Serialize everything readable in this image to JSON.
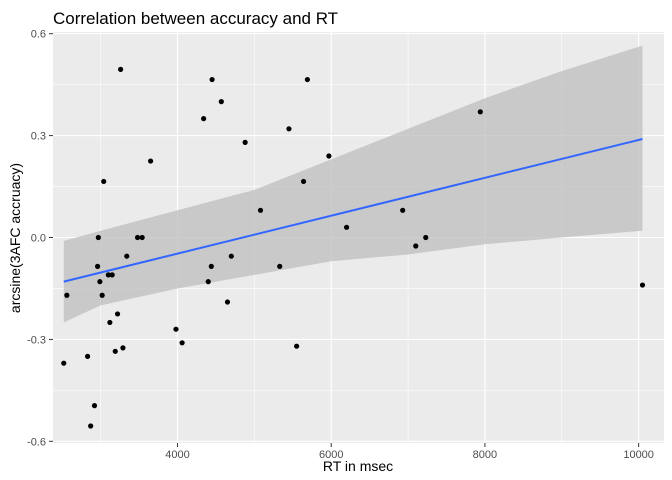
{
  "chart_data": {
    "type": "scatter",
    "title": "Correlation between accuracy and RT",
    "xlabel": "RT in msec",
    "ylabel": "arcsine(3AFC accruacy)",
    "xlim": [
      2380,
      10330
    ],
    "ylim": [
      -0.605,
      0.605
    ],
    "xticks": [
      4000,
      6000,
      8000,
      10000
    ],
    "xtick_labels": [
      "4000",
      "6000",
      "8000",
      "10000"
    ],
    "yticks": [
      -0.6,
      -0.3,
      0.0,
      0.3,
      0.6
    ],
    "ytick_labels": [
      "-0.6",
      "-0.3",
      "0.0",
      "0.3",
      "0.6"
    ],
    "grid": true,
    "colors": {
      "panel": "#ebebeb",
      "grid": "#ffffff",
      "points": "#000000",
      "fit_line": "#3366ff",
      "confidence_band": "#bdbdbd"
    },
    "points": [
      {
        "x": 2520,
        "y": -0.37
      },
      {
        "x": 2560,
        "y": -0.17
      },
      {
        "x": 2830,
        "y": -0.35
      },
      {
        "x": 2870,
        "y": -0.555
      },
      {
        "x": 2920,
        "y": -0.495
      },
      {
        "x": 2960,
        "y": -0.085
      },
      {
        "x": 2970,
        "y": 0.0
      },
      {
        "x": 2990,
        "y": -0.13
      },
      {
        "x": 3020,
        "y": -0.17
      },
      {
        "x": 3040,
        "y": 0.165
      },
      {
        "x": 3100,
        "y": -0.11
      },
      {
        "x": 3120,
        "y": -0.25
      },
      {
        "x": 3150,
        "y": -0.11
      },
      {
        "x": 3190,
        "y": -0.335
      },
      {
        "x": 3220,
        "y": -0.225
      },
      {
        "x": 3260,
        "y": 0.495
      },
      {
        "x": 3290,
        "y": -0.325
      },
      {
        "x": 3340,
        "y": -0.055
      },
      {
        "x": 3480,
        "y": 0.0
      },
      {
        "x": 3540,
        "y": 0.0
      },
      {
        "x": 3650,
        "y": 0.225
      },
      {
        "x": 3980,
        "y": -0.27
      },
      {
        "x": 4060,
        "y": -0.31
      },
      {
        "x": 4340,
        "y": 0.35
      },
      {
        "x": 4400,
        "y": -0.13
      },
      {
        "x": 4440,
        "y": -0.085
      },
      {
        "x": 4450,
        "y": 0.465
      },
      {
        "x": 4570,
        "y": 0.4
      },
      {
        "x": 4650,
        "y": -0.19
      },
      {
        "x": 4700,
        "y": -0.055
      },
      {
        "x": 4880,
        "y": 0.28
      },
      {
        "x": 5080,
        "y": 0.08
      },
      {
        "x": 5330,
        "y": -0.085
      },
      {
        "x": 5450,
        "y": 0.32
      },
      {
        "x": 5550,
        "y": -0.32
      },
      {
        "x": 5640,
        "y": 0.165
      },
      {
        "x": 5690,
        "y": 0.465
      },
      {
        "x": 5970,
        "y": 0.24
      },
      {
        "x": 6200,
        "y": 0.03
      },
      {
        "x": 6930,
        "y": 0.08
      },
      {
        "x": 7100,
        "y": -0.025
      },
      {
        "x": 7230,
        "y": 0.0
      },
      {
        "x": 7940,
        "y": 0.37
      },
      {
        "x": 10050,
        "y": -0.14
      }
    ],
    "fit_line": {
      "x": [
        2520,
        10050
      ],
      "y": [
        -0.13,
        0.29
      ]
    },
    "confidence_band": {
      "x": [
        2520,
        3000,
        4000,
        5000,
        6000,
        7000,
        8000,
        9000,
        10050
      ],
      "upper": [
        -0.01,
        0.02,
        0.08,
        0.14,
        0.23,
        0.32,
        0.41,
        0.49,
        0.565
      ],
      "lower": [
        -0.25,
        -0.2,
        -0.15,
        -0.11,
        -0.07,
        -0.05,
        -0.02,
        0.0,
        0.02
      ]
    }
  }
}
